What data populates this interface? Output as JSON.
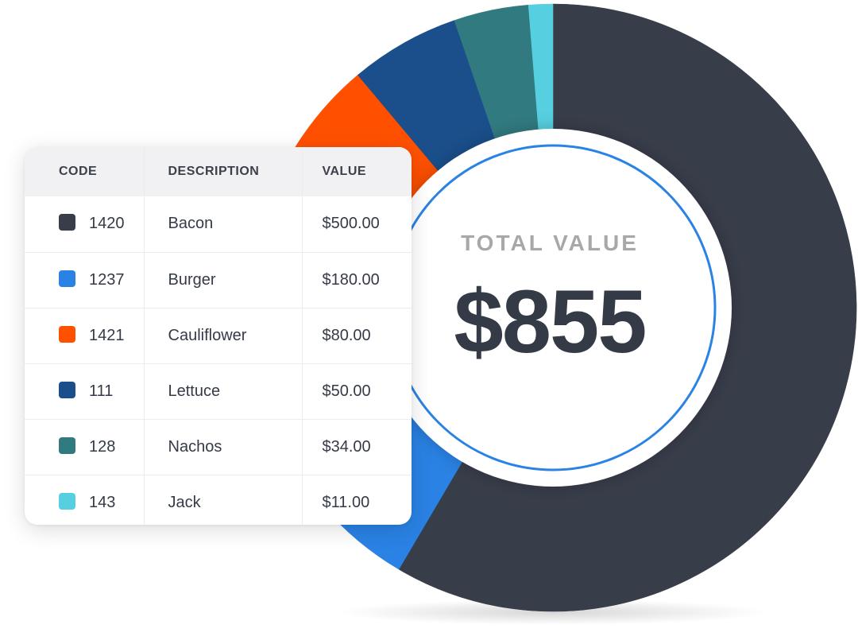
{
  "table": {
    "headers": {
      "code": "CODE",
      "description": "DESCRIPTION",
      "value": "VALUE"
    },
    "rows": [
      {
        "code": "1420",
        "description": "Bacon",
        "value": "$500.00",
        "color": "#383d4a"
      },
      {
        "code": "1237",
        "description": "Burger",
        "value": "$180.00",
        "color": "#2a82e4"
      },
      {
        "code": "1421",
        "description": "Cauliflower",
        "value": "$80.00",
        "color": "#ff5000"
      },
      {
        "code": "111",
        "description": "Lettuce",
        "value": "$50.00",
        "color": "#1a4f8b"
      },
      {
        "code": "128",
        "description": "Nachos",
        "value": "$34.00",
        "color": "#317a80"
      },
      {
        "code": "143",
        "description": "Jack",
        "value": "$11.00",
        "color": "#56cfe0"
      }
    ]
  },
  "summary": {
    "label": "TOTAL VALUE",
    "total": "$855"
  },
  "chart_data": {
    "type": "pie",
    "title": "",
    "categories": [
      "Bacon",
      "Burger",
      "Cauliflower",
      "Lettuce",
      "Nachos",
      "Jack"
    ],
    "values": [
      500,
      180,
      80,
      50,
      34,
      11
    ],
    "colors": [
      "#383d4a",
      "#2a82e4",
      "#ff5000",
      "#1a4f8b",
      "#317a80",
      "#56cfe0"
    ],
    "start_angle_deg": 0,
    "direction": "clockwise",
    "center_ring_color": "#2a82e4"
  }
}
